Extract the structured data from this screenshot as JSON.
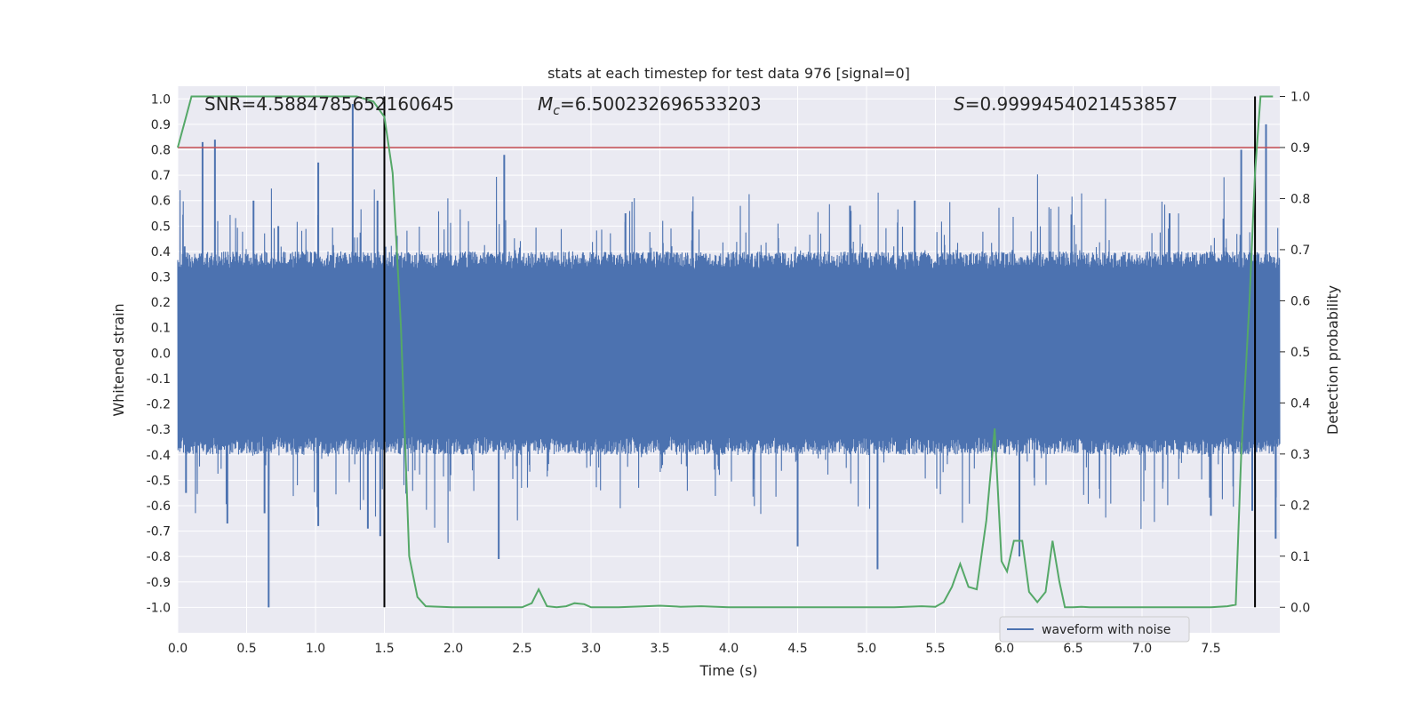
{
  "chart_data": {
    "type": "line",
    "title": "stats at each timestep for test data 976 [signal=0]",
    "xlabel": "Time (s)",
    "ylabel_left": "Whitened strain",
    "ylabel_right": "Detection probability",
    "xlim": [
      0.0,
      8.0
    ],
    "ylim_left": [
      -1.1,
      1.05
    ],
    "ylim_right": [
      -0.05,
      1.02
    ],
    "x_ticks": [
      "0.0",
      "0.5",
      "1.0",
      "1.5",
      "2.0",
      "2.5",
      "3.0",
      "3.5",
      "4.0",
      "4.5",
      "5.0",
      "5.5",
      "6.0",
      "6.5",
      "7.0",
      "7.5"
    ],
    "x_tick_values": [
      0.0,
      0.5,
      1.0,
      1.5,
      2.0,
      2.5,
      3.0,
      3.5,
      4.0,
      4.5,
      5.0,
      5.5,
      6.0,
      6.5,
      7.0,
      7.5
    ],
    "y_left_ticks": [
      "1.0",
      "0.9",
      "0.8",
      "0.7",
      "0.6",
      "0.5",
      "0.4",
      "0.3",
      "0.2",
      "0.1",
      "0.0",
      "-0.1",
      "-0.2",
      "-0.3",
      "-0.4",
      "-0.5",
      "-0.6",
      "-0.7",
      "-0.8",
      "-0.9",
      "-1.0"
    ],
    "y_left_tick_values": [
      1.0,
      0.9,
      0.8,
      0.7,
      0.6,
      0.5,
      0.4,
      0.3,
      0.2,
      0.1,
      0.0,
      -0.1,
      -0.2,
      -0.3,
      -0.4,
      -0.5,
      -0.6,
      -0.7,
      -0.8,
      -0.9,
      -1.0
    ],
    "y_right_ticks": [
      "1.0",
      "0.9",
      "0.8",
      "0.7",
      "0.6",
      "0.5",
      "0.4",
      "0.3",
      "0.2",
      "0.1",
      "0.0"
    ],
    "y_right_tick_values": [
      1.0,
      0.9,
      0.8,
      0.7,
      0.6,
      0.5,
      0.4,
      0.3,
      0.2,
      0.1,
      0.0
    ],
    "annotations": {
      "snr": "SNR=4.5884785652160645",
      "mc_symbol": "M",
      "mc_sub": "c",
      "mc_value": "=6.500232696533203",
      "s_symbol": "S",
      "s_value": "=0.9999454021453857"
    },
    "legend": {
      "label": "waveform with noise",
      "placement": "lower-right"
    },
    "threshold_line": {
      "axis": "right",
      "value": 0.9,
      "color": "#c44e52"
    },
    "vertical_lines": [
      1.5,
      7.82
    ],
    "strain_series": {
      "name": "waveform with noise",
      "color": "#4c72b0",
      "duration_s": 8.0,
      "typical_envelope": [
        -0.4,
        0.4
      ],
      "spikes": [
        {
          "t": 0.05,
          "v": 0.42
        },
        {
          "t": 0.06,
          "v": -0.55
        },
        {
          "t": 0.12,
          "v": 0.36
        },
        {
          "t": 0.18,
          "v": 0.83
        },
        {
          "t": 0.27,
          "v": 0.84
        },
        {
          "t": 0.36,
          "v": -0.67
        },
        {
          "t": 0.55,
          "v": 0.6
        },
        {
          "t": 0.63,
          "v": -0.63
        },
        {
          "t": 0.66,
          "v": -1.0
        },
        {
          "t": 0.73,
          "v": 0.5
        },
        {
          "t": 1.02,
          "v": 0.75
        },
        {
          "t": 1.02,
          "v": -0.68
        },
        {
          "t": 1.27,
          "v": 0.98
        },
        {
          "t": 1.38,
          "v": -0.69
        },
        {
          "t": 1.47,
          "v": -0.72
        },
        {
          "t": 1.45,
          "v": 0.6
        },
        {
          "t": 2.33,
          "v": -0.81
        },
        {
          "t": 2.37,
          "v": 0.78
        },
        {
          "t": 3.25,
          "v": 0.55
        },
        {
          "t": 4.5,
          "v": -0.76
        },
        {
          "t": 4.88,
          "v": 0.58
        },
        {
          "t": 5.08,
          "v": -0.85
        },
        {
          "t": 5.35,
          "v": 0.6
        },
        {
          "t": 6.11,
          "v": -0.8
        },
        {
          "t": 7.2,
          "v": 0.55
        },
        {
          "t": 7.5,
          "v": -0.64
        },
        {
          "t": 7.72,
          "v": 0.8
        },
        {
          "t": 7.8,
          "v": -0.62
        },
        {
          "t": 7.9,
          "v": 0.9
        },
        {
          "t": 7.97,
          "v": -0.73
        }
      ]
    },
    "probability_series": {
      "name": "Detection probability",
      "color": "#55a868",
      "x": [
        0.0,
        0.05,
        0.1,
        0.2,
        0.5,
        0.8,
        1.1,
        1.3,
        1.42,
        1.5,
        1.56,
        1.62,
        1.68,
        1.74,
        1.8,
        2.0,
        2.2,
        2.5,
        2.57,
        2.62,
        2.68,
        2.75,
        2.82,
        2.88,
        2.95,
        3.0,
        3.2,
        3.4,
        3.5,
        3.65,
        3.8,
        4.0,
        4.5,
        5.0,
        5.2,
        5.4,
        5.5,
        5.56,
        5.62,
        5.68,
        5.74,
        5.8,
        5.87,
        5.93,
        5.98,
        6.02,
        6.07,
        6.13,
        6.18,
        6.24,
        6.3,
        6.35,
        6.4,
        6.44,
        6.5,
        6.56,
        6.62,
        6.7,
        6.85,
        7.0,
        7.3,
        7.5,
        7.62,
        7.68,
        7.72,
        7.75,
        7.78,
        7.82,
        7.86,
        7.9,
        7.95
      ],
      "y": [
        0.9,
        0.95,
        1.0,
        1.0,
        1.0,
        1.0,
        1.0,
        1.0,
        0.99,
        0.96,
        0.85,
        0.55,
        0.1,
        0.02,
        0.002,
        0.0,
        0.0,
        0.0,
        0.008,
        0.035,
        0.002,
        0.0,
        0.002,
        0.008,
        0.006,
        0.0,
        0.0,
        0.002,
        0.003,
        0.001,
        0.002,
        0.0,
        0.0,
        0.0,
        0.0,
        0.002,
        0.001,
        0.01,
        0.04,
        0.085,
        0.04,
        0.035,
        0.17,
        0.35,
        0.09,
        0.07,
        0.13,
        0.13,
        0.03,
        0.01,
        0.03,
        0.13,
        0.05,
        0.0,
        0.0,
        0.001,
        0.0,
        0.0,
        0.0,
        0.0,
        0.0,
        0.0,
        0.002,
        0.005,
        0.3,
        0.45,
        0.6,
        0.85,
        1.0,
        1.0,
        1.0
      ]
    }
  }
}
